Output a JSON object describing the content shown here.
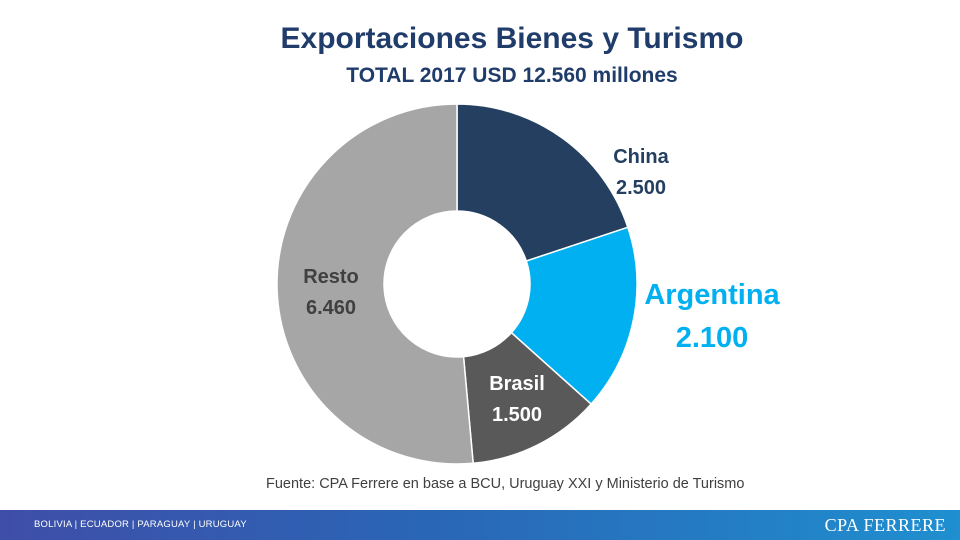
{
  "chart_data": {
    "type": "pie",
    "style": "donut",
    "title": "Exportaciones Bienes y Turismo",
    "subtitle": "TOTAL 2017 USD 12.560 millones",
    "categories": [
      "China",
      "Argentina",
      "Brasil",
      "Resto"
    ],
    "values": [
      2500,
      2100,
      1500,
      6460
    ],
    "value_labels": [
      "2.500",
      "2.100",
      "1.500",
      "6.460"
    ],
    "colors": [
      "#243f60",
      "#00b0f0",
      "#595959",
      "#a6a6a6"
    ],
    "label_colors": [
      "#243f60",
      "#00b0f0",
      "#ffffff",
      "#404040"
    ]
  },
  "source": "Fuente: CPA Ferrere en base a BCU, Uruguay XXI y Ministerio de Turismo",
  "footer": {
    "countries": "BOLIVIA | ECUADOR | PARAGUAY | URUGUAY",
    "brand": "CPA FERRERE"
  }
}
